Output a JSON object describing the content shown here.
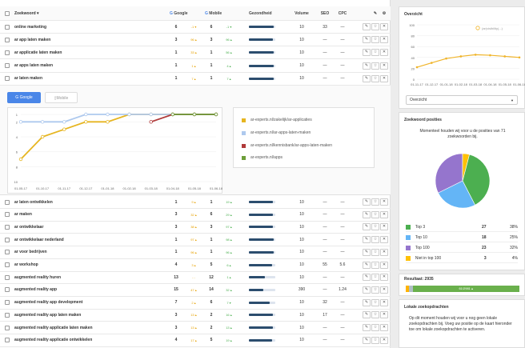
{
  "table": {
    "headers": {
      "keyword": "Zoekwoord ▾",
      "google": "Google",
      "mobile": "Mobile",
      "health": "Gezondheid",
      "volume": "Volume",
      "seo": "SEO",
      "cpc": "CPC"
    },
    "rows_top": [
      {
        "keyword": "online marketing",
        "g": "6",
        "gchg": "-1 ▾",
        "m": "6",
        "mchg": "-1 ▾",
        "health": 0.95,
        "volume": "10",
        "seo": "33",
        "cpc": "—"
      },
      {
        "keyword": "ar app laten maken",
        "g": "3",
        "gchg": "96 ▴",
        "m": "3",
        "mchg": "96 ▴",
        "health": 0.9,
        "volume": "10",
        "seo": "—",
        "cpc": "—"
      },
      {
        "keyword": "ar applicatie laten maken",
        "g": "1",
        "gchg": "33 ▴",
        "m": "1",
        "mchg": "56 ▴",
        "health": 0.95,
        "volume": "10",
        "seo": "—",
        "cpc": "—"
      },
      {
        "keyword": "ar apps laten maken",
        "g": "1",
        "gchg": "1 ▴",
        "m": "1",
        "mchg": "4 ▴",
        "health": 0.95,
        "volume": "10",
        "seo": "—",
        "cpc": "—"
      },
      {
        "keyword": "ar laten maken",
        "g": "1",
        "gchg": "7 ▴",
        "m": "1",
        "mchg": "7 ▴",
        "health": 0.95,
        "volume": "10",
        "seo": "—",
        "cpc": "—"
      }
    ],
    "rows_bottom": [
      {
        "keyword": "ar laten ontwikkelen",
        "g": "1",
        "gchg": "9 ▴",
        "m": "1",
        "mchg": "19 ▴",
        "health": 0.92,
        "volume": "10",
        "seo": "—",
        "cpc": "—"
      },
      {
        "keyword": "ar maken",
        "g": "3",
        "gchg": "32 ▴",
        "m": "6",
        "mchg": "29 ▴",
        "health": 0.9,
        "volume": "10",
        "seo": "—",
        "cpc": "—"
      },
      {
        "keyword": "ar ontwikkelaar",
        "g": "3",
        "gchg": "38 ▴",
        "m": "3",
        "mchg": "97 ▴",
        "health": 0.9,
        "volume": "10",
        "seo": "—",
        "cpc": "—"
      },
      {
        "keyword": "ar ontwikkelaar nederland",
        "g": "1",
        "gchg": "97 ▴",
        "m": "1",
        "mchg": "98 ▴",
        "health": 0.95,
        "volume": "10",
        "seo": "—",
        "cpc": "—"
      },
      {
        "keyword": "ar voor bedrijven",
        "g": "1",
        "gchg": "96 ▴",
        "m": "1",
        "mchg": "96 ▴",
        "health": 0.95,
        "volume": "10",
        "seo": "—",
        "cpc": "—"
      },
      {
        "keyword": "ar workshop",
        "g": "4",
        "gchg": "3 ▴",
        "m": "5",
        "mchg": "6 ▴",
        "health": 0.88,
        "volume": "10",
        "seo": "55",
        "cpc": "5.6"
      },
      {
        "keyword": "augmented reality huren",
        "g": "13",
        "gchg": "- -",
        "m": "12",
        "mchg": "1 ▴",
        "health": 0.6,
        "volume": "10",
        "seo": "—",
        "cpc": "—"
      },
      {
        "keyword": "augmented reality app",
        "g": "15",
        "gchg": "47 ▴",
        "m": "14",
        "mchg": "32 ▴",
        "health": 0.55,
        "volume": "390",
        "seo": "—",
        "cpc": "1.24"
      },
      {
        "keyword": "augmented reality app development",
        "g": "7",
        "gchg": "2 ▴",
        "m": "6",
        "mchg": "7 ▾",
        "health": 0.8,
        "volume": "10",
        "seo": "32",
        "cpc": "—"
      },
      {
        "keyword": "augmented reality app laten maken",
        "g": "3",
        "gchg": "13 ▴",
        "m": "2",
        "mchg": "16 ▴",
        "health": 0.9,
        "volume": "10",
        "seo": "17",
        "cpc": "—"
      },
      {
        "keyword": "augmented reality applicatie laten maken",
        "g": "3",
        "gchg": "13 ▴",
        "m": "2",
        "mchg": "13 ▴",
        "health": 0.9,
        "volume": "10",
        "seo": "—",
        "cpc": "—"
      },
      {
        "keyword": "augmented reality applicatie ontwikkelen",
        "g": "4",
        "gchg": "17 ▴",
        "m": "5",
        "mchg": "19 ▴",
        "health": 0.88,
        "volume": "10",
        "seo": "—",
        "cpc": "—"
      }
    ]
  },
  "panel": {
    "btn_google": "Google",
    "btn_mobile": "Mobile",
    "legend": [
      {
        "label": "ar-experts.nl/zakelijk/ar-applicaties",
        "color": "#e6b520"
      },
      {
        "label": "ar-experts.nl/ar-apps-laten-maken",
        "color": "#aec9ee"
      },
      {
        "label": "ar-experts.nl/kennisbank/ar-apps-laten-maken",
        "color": "#b03a3a"
      },
      {
        "label": "ar-experts.nl/apps",
        "color": "#6e9e3a"
      }
    ]
  },
  "chart_data": [
    {
      "type": "line",
      "title": "",
      "x": [
        "01-05-17",
        "01-10-17",
        "01-11-17",
        "01-12-17",
        "01-01-18",
        "01-02-18",
        "01-03-18",
        "01-04-18",
        "01-05-18",
        "01-06-18"
      ],
      "ylim": [
        1,
        10
      ],
      "y_reversed": true,
      "yticks": [
        "1",
        "2",
        "4",
        "6",
        "8",
        "10"
      ],
      "series": [
        {
          "name": "ar-experts.nl/zakelijk/ar-applicaties",
          "values": [
            7,
            4,
            3,
            2,
            2,
            1,
            1,
            1,
            1,
            1
          ]
        },
        {
          "name": "ar-experts.nl/ar-apps-laten-maken",
          "values": [
            2,
            2,
            2,
            1,
            1,
            1,
            1,
            1,
            1,
            1
          ]
        },
        {
          "name": "ar-experts.nl/kennisbank/ar-apps-laten-maken",
          "values": [
            null,
            null,
            null,
            null,
            null,
            null,
            2,
            1,
            1,
            1
          ]
        },
        {
          "name": "ar-experts.nl/apps",
          "values": [
            null,
            null,
            null,
            null,
            null,
            null,
            null,
            1,
            1,
            1
          ]
        }
      ]
    },
    {
      "type": "line",
      "title": "",
      "x": [
        "01-11-17",
        "01-12-17",
        "01-01-18",
        "01-02-18",
        "01-03-18",
        "01-04-18",
        "01-05-18",
        "01-06-18"
      ],
      "ylim": [
        0,
        100
      ],
      "yticks": [
        "0",
        "20",
        "40",
        "60",
        "80",
        "100"
      ],
      "legend": "(ar)visibility(...)",
      "series": [
        {
          "name": "",
          "values": [
            22,
            30,
            38,
            42,
            45,
            44,
            42,
            40
          ]
        }
      ]
    },
    {
      "type": "pie",
      "title": "",
      "categories": [
        "Top 3",
        "Top 10",
        "Top 100",
        "Niet in top 100"
      ],
      "values": [
        38,
        25,
        32,
        4
      ]
    }
  ],
  "sidebar": {
    "overview_title": "Overzicht",
    "overview_select": "Overzicht",
    "positions_title": "Zoekwoord posities",
    "positions_text": "Momenteel houden wij voor u de posities van 71 zoekwoorden bij.",
    "positions": [
      {
        "label": "Top 3",
        "count": "27",
        "pct": "38%",
        "color": "#4caf50"
      },
      {
        "label": "Top 10",
        "count": "18",
        "pct": "25%",
        "color": "#64b5f6"
      },
      {
        "label": "Top 100",
        "count": "23",
        "pct": "32%",
        "color": "#9575cd"
      },
      {
        "label": "Niet in top 100",
        "count": "3",
        "pct": "4%",
        "color": "#ffc107"
      }
    ],
    "result_label": "Resultaat: 2935",
    "result_bar": [
      {
        "label": "",
        "value": 0.03,
        "color": "#ffb300"
      },
      {
        "label": "",
        "value": 0.03,
        "color": "#b0bec5"
      },
      {
        "label": "61/2981 ▴",
        "value": 0.94,
        "color": "#6ab04c"
      }
    ],
    "local_title": "Lokale zoekopdrachten",
    "local_text": "Op dit moment houden wij voor u nog geen lokale zoekopdrachten bij. Voeg uw positie op de kaart hieronder toe om lokale zoekopdrachten te activeren."
  }
}
